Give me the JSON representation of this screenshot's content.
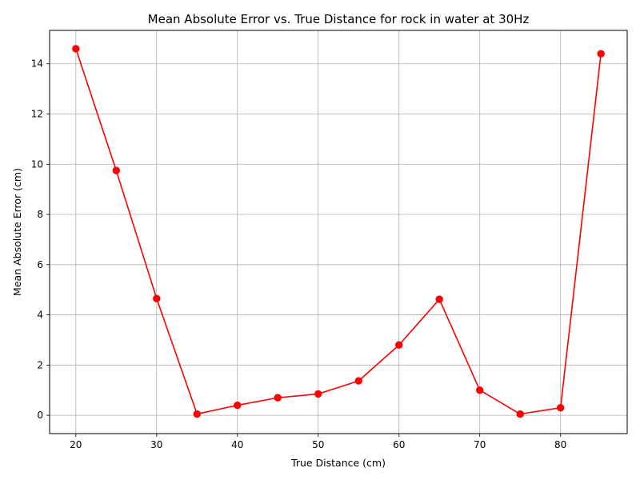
{
  "chart_data": {
    "type": "line",
    "title": "Mean Absolute Error vs. True Distance for rock in water at 30Hz",
    "xlabel": "True Distance (cm)",
    "ylabel": "Mean Absolute Error (cm)",
    "xlim": [
      16.75,
      88.25
    ],
    "ylim": [
      -0.73,
      15.33
    ],
    "x_ticks": [
      20,
      30,
      40,
      50,
      60,
      70,
      80
    ],
    "y_ticks": [
      0,
      2,
      4,
      6,
      8,
      10,
      12,
      14
    ],
    "grid": true,
    "series": [
      {
        "color": "#ff0000",
        "marker": "circle",
        "x": [
          20,
          25,
          30,
          35,
          40,
          45,
          50,
          55,
          60,
          65,
          70,
          75,
          80,
          85
        ],
        "y": [
          14.6,
          9.75,
          4.65,
          0.05,
          0.4,
          0.7,
          0.85,
          1.37,
          2.8,
          4.62,
          1.0,
          0.05,
          0.3,
          14.4
        ]
      }
    ]
  }
}
